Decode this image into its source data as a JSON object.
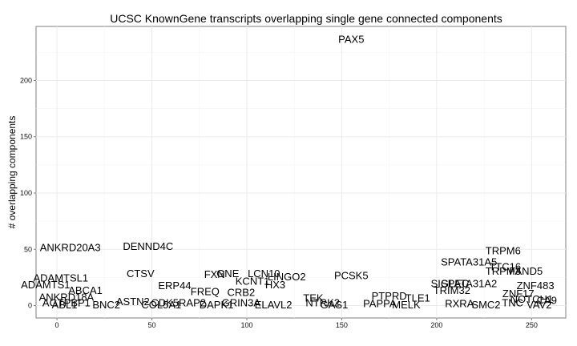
{
  "chart_data": {
    "type": "scatter",
    "title": "UCSC KnownGene transcripts overlapping single gene connected components",
    "xlabel": "",
    "ylabel": "# overlapping components",
    "xlim": [
      -11,
      268
    ],
    "ylim": [
      -11,
      248
    ],
    "x_ticks": [
      0,
      50,
      100,
      150,
      200,
      250
    ],
    "y_ticks": [
      0,
      50,
      100,
      150,
      200
    ],
    "grid": true,
    "marker": "text-labels",
    "points": [
      {
        "label": "PAX5",
        "x": 155,
        "y": 237
      },
      {
        "label": "ANKRD20A3",
        "x": 7,
        "y": 52
      },
      {
        "label": "DENND4C",
        "x": 48,
        "y": 53
      },
      {
        "label": "TRPM6",
        "x": 235,
        "y": 49
      },
      {
        "label": "SPATA31A5",
        "x": 217,
        "y": 39
      },
      {
        "label": "TTC16",
        "x": 236,
        "y": 35
      },
      {
        "label": "FAND5",
        "x": 247,
        "y": 31
      },
      {
        "label": "TRPM3",
        "x": 235,
        "y": 31
      },
      {
        "label": "CTSV",
        "x": 44,
        "y": 29
      },
      {
        "label": "LCN10",
        "x": 109,
        "y": 29
      },
      {
        "label": "GNE",
        "x": 90,
        "y": 29
      },
      {
        "label": "FXN",
        "x": 83,
        "y": 28
      },
      {
        "label": "PCSK5",
        "x": 155,
        "y": 27
      },
      {
        "label": "LINGO2",
        "x": 121,
        "y": 26
      },
      {
        "label": "ADAMTSL1",
        "x": 2,
        "y": 25
      },
      {
        "label": "KCNT1",
        "x": 103,
        "y": 22
      },
      {
        "label": "HX3",
        "x": 115,
        "y": 19
      },
      {
        "label": "ADAMTS1",
        "x": -6,
        "y": 19
      },
      {
        "label": "SPATA31A2",
        "x": 217,
        "y": 20
      },
      {
        "label": "SIGLEC",
        "x": 207,
        "y": 20
      },
      {
        "label": "ERP44",
        "x": 62,
        "y": 18
      },
      {
        "label": "ZNF483",
        "x": 252,
        "y": 18
      },
      {
        "label": "TRIM32",
        "x": 208,
        "y": 14
      },
      {
        "label": "ABCA1",
        "x": 15,
        "y": 14
      },
      {
        "label": "FREQ",
        "x": 78,
        "y": 13
      },
      {
        "label": "CRB2",
        "x": 97,
        "y": 12
      },
      {
        "label": "ZNF17",
        "x": 243,
        "y": 11
      },
      {
        "label": "ANKRD18A",
        "x": 5,
        "y": 8
      },
      {
        "label": "TEK",
        "x": 135,
        "y": 7
      },
      {
        "label": "PTPRD",
        "x": 175,
        "y": 9
      },
      {
        "label": "TLE1",
        "x": 190,
        "y": 7
      },
      {
        "label": "NOTCH1",
        "x": 250,
        "y": 6
      },
      {
        "label": "CA9",
        "x": 258,
        "y": 5
      },
      {
        "label": "AGTPBP1",
        "x": 5,
        "y": 3
      },
      {
        "label": "ASTN2",
        "x": 40,
        "y": 4
      },
      {
        "label": "CDK5RAP2",
        "x": 64,
        "y": 3
      },
      {
        "label": "GRIN3A",
        "x": 97,
        "y": 3
      },
      {
        "label": "NTRK2",
        "x": 140,
        "y": 3
      },
      {
        "label": "PAPPA",
        "x": 170,
        "y": 2
      },
      {
        "label": "RXRA",
        "x": 212,
        "y": 2
      },
      {
        "label": "TNC",
        "x": 240,
        "y": 3
      },
      {
        "label": "ABL1",
        "x": 4,
        "y": 1
      },
      {
        "label": "BNC2",
        "x": 26,
        "y": 1
      },
      {
        "label": "COL5A1",
        "x": 55,
        "y": 1
      },
      {
        "label": "DAPK1",
        "x": 84,
        "y": 1
      },
      {
        "label": "ELAVL2",
        "x": 114,
        "y": 1
      },
      {
        "label": "GAS1",
        "x": 146,
        "y": 1
      },
      {
        "label": "MELK",
        "x": 184,
        "y": 1
      },
      {
        "label": "SMC2",
        "x": 226,
        "y": 1
      },
      {
        "label": "VAV2",
        "x": 254,
        "y": 1
      }
    ]
  }
}
